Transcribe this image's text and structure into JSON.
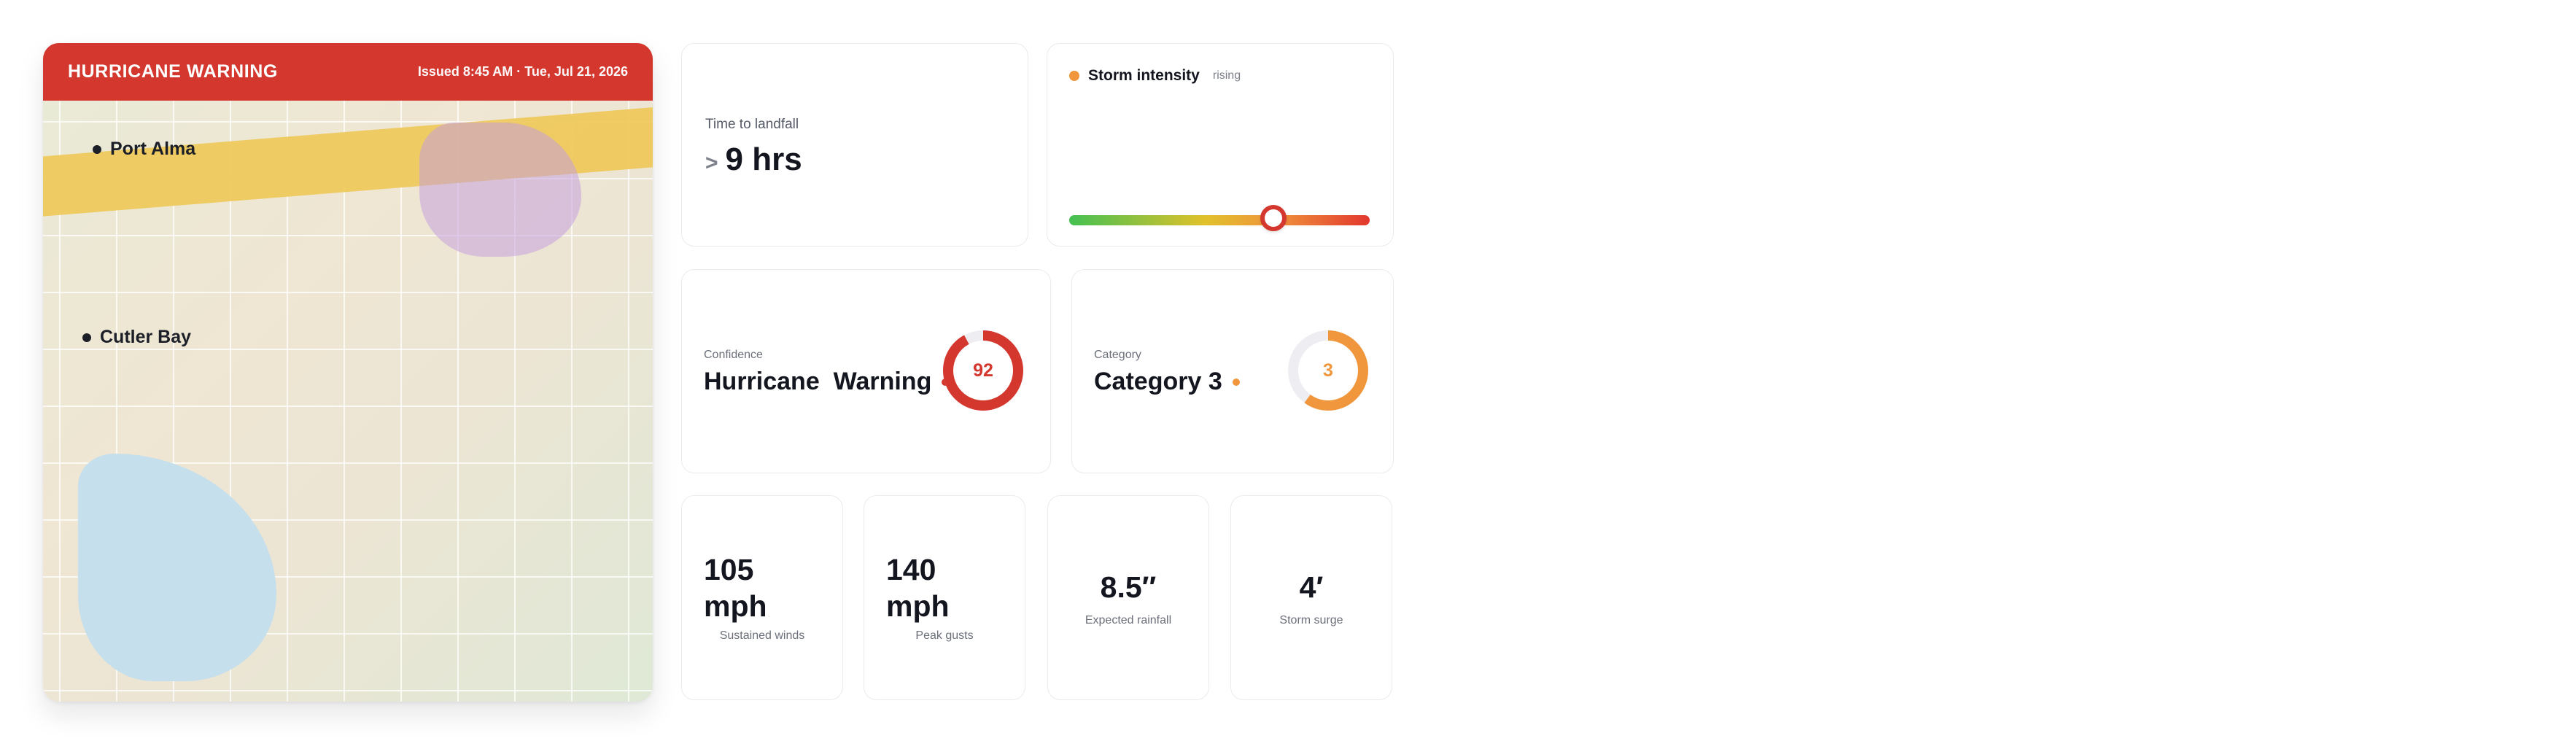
{
  "map": {
    "title": "HURRICANE WARNING",
    "issued": "Issued 8:45 AM · Tue, Jul 21, 2026",
    "cities": [
      {
        "name": "Port Alma"
      },
      {
        "name": "Cutler Bay"
      }
    ]
  },
  "landfall": {
    "label": "Time to landfall",
    "prefix": ">",
    "value": "9 hrs"
  },
  "intensity": {
    "title": "Storm intensity",
    "trend": "rising",
    "level_fraction": 0.68,
    "colors": {
      "dot": "#f0963c",
      "low": "#43c052",
      "mid": "#e0c12a",
      "high": "#e2372e"
    }
  },
  "confidence": {
    "label": "Confidence",
    "value": "Hurricane  Warning",
    "score": "92",
    "score_fraction": 0.92,
    "color": "#d3372d"
  },
  "category": {
    "label": "Category",
    "value": "Category 3",
    "number": "3",
    "fraction": 0.6,
    "color": "#f0963c"
  },
  "stats": [
    {
      "value": "105",
      "unit": "mph",
      "caption": "Sustained winds"
    },
    {
      "value": "140",
      "unit": "mph",
      "caption": "Peak gusts"
    },
    {
      "value": "8.5″",
      "caption": "Expected rainfall"
    },
    {
      "value": "4′",
      "caption": "Storm surge"
    }
  ],
  "colors": {
    "alert": "#d3372d",
    "accent": "#f0963c"
  }
}
